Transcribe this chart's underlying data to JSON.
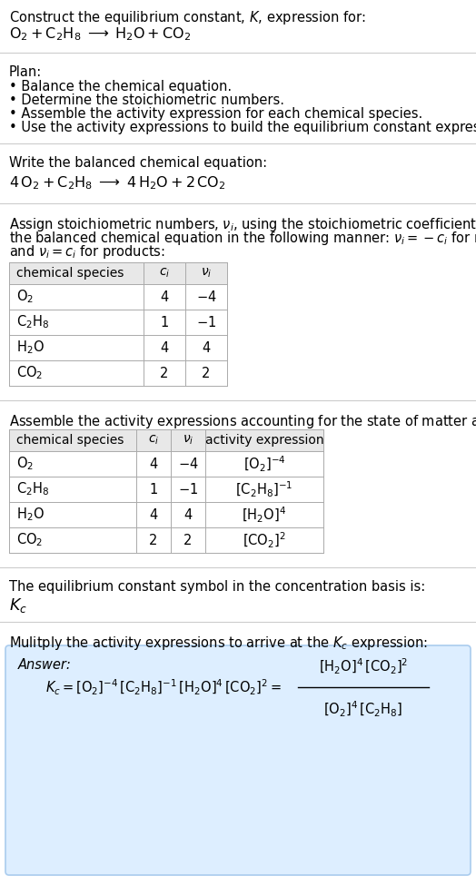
{
  "bg_color": "#ffffff",
  "text_color": "#000000",
  "title_line1": "Construct the equilibrium constant, $K$, expression for:",
  "title_line2_parts": [
    "$\\mathrm{O_2 + C_2H_8}$",
    "$\\;\\longrightarrow\\;$",
    "$\\mathrm{H_2O + CO_2}$"
  ],
  "plan_header": "Plan:",
  "plan_bullets": [
    "• Balance the chemical equation.",
    "• Determine the stoichiometric numbers.",
    "• Assemble the activity expression for each chemical species.",
    "• Use the activity expressions to build the equilibrium constant expression."
  ],
  "balanced_header": "Write the balanced chemical equation:",
  "balanced_eq": "$\\mathrm{4\\,O_2 + C_2H_8 \\;\\longrightarrow\\; 4\\,H_2O + 2\\,CO_2}$",
  "stoich_lines": [
    "Assign stoichiometric numbers, $\\nu_i$, using the stoichiometric coefficients, $c_i$, from",
    "the balanced chemical equation in the following manner: $\\nu_i = -c_i$ for reactants",
    "and $\\nu_i = c_i$ for products:"
  ],
  "table1_headers": [
    "chemical species",
    "$c_i$",
    "$\\nu_i$"
  ],
  "table1_rows": [
    [
      "$\\mathrm{O_2}$",
      "4",
      "$-4$"
    ],
    [
      "$\\mathrm{C_2H_8}$",
      "1",
      "$-1$"
    ],
    [
      "$\\mathrm{H_2O}$",
      "4",
      "4"
    ],
    [
      "$\\mathrm{CO_2}$",
      "2",
      "2"
    ]
  ],
  "activity_header": "Assemble the activity expressions accounting for the state of matter and $\\nu_i$:",
  "table2_headers": [
    "chemical species",
    "$c_i$",
    "$\\nu_i$",
    "activity expression"
  ],
  "table2_rows": [
    [
      "$\\mathrm{O_2}$",
      "4",
      "$-4$",
      "$[\\mathrm{O_2}]^{-4}$"
    ],
    [
      "$\\mathrm{C_2H_8}$",
      "1",
      "$-1$",
      "$[\\mathrm{C_2H_8}]^{-1}$"
    ],
    [
      "$\\mathrm{H_2O}$",
      "4",
      "4",
      "$[\\mathrm{H_2O}]^{4}$"
    ],
    [
      "$\\mathrm{CO_2}$",
      "2",
      "2",
      "$[\\mathrm{CO_2}]^{2}$"
    ]
  ],
  "kc_symbol_header": "The equilibrium constant symbol in the concentration basis is:",
  "kc_symbol": "$K_c$",
  "multiply_header": "Mulitply the activity expressions to arrive at the $K_c$ expression:",
  "answer_label": "Answer:",
  "answer_box_color": "#ddeeff",
  "answer_box_edge": "#aaccee",
  "font_size": 10.5,
  "table_header_bg": "#e8e8e8",
  "table_row_bg": "#ffffff",
  "table_border": "#aaaaaa",
  "hline_color": "#cccccc"
}
